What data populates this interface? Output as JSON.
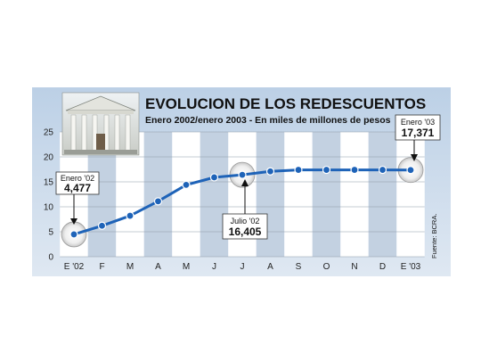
{
  "chart_data": {
    "type": "line",
    "title": "EVOLUCION DE LOS REDESCUENTOS",
    "subtitle": "Enero 2002/enero 2003 - En miles de millones de pesos",
    "categories": [
      "E '02",
      "F",
      "M",
      "A",
      "M",
      "J",
      "J",
      "A",
      "S",
      "O",
      "N",
      "D",
      "E '03"
    ],
    "series": [
      {
        "values": [
          4.477,
          6.2,
          8.2,
          11.1,
          14.4,
          15.9,
          16.405,
          17.1,
          17.4,
          17.4,
          17.4,
          17.4,
          17.371
        ]
      }
    ],
    "yticks": [
      "0",
      "5",
      "10",
      "15",
      "20",
      "25"
    ],
    "ylim": [
      0,
      25
    ],
    "grid": true,
    "line_color": "#1e63b8",
    "callouts": [
      {
        "label": "Enero '02",
        "value": "4,477",
        "index": 0
      },
      {
        "label": "Julio '02",
        "value": "16,405",
        "index": 6
      },
      {
        "label": "Enero '03",
        "value": "17,371",
        "index": 12
      }
    ],
    "source": "Fuente: BCRA."
  },
  "header": {
    "photo_alt": "central-bank-building-photo"
  }
}
